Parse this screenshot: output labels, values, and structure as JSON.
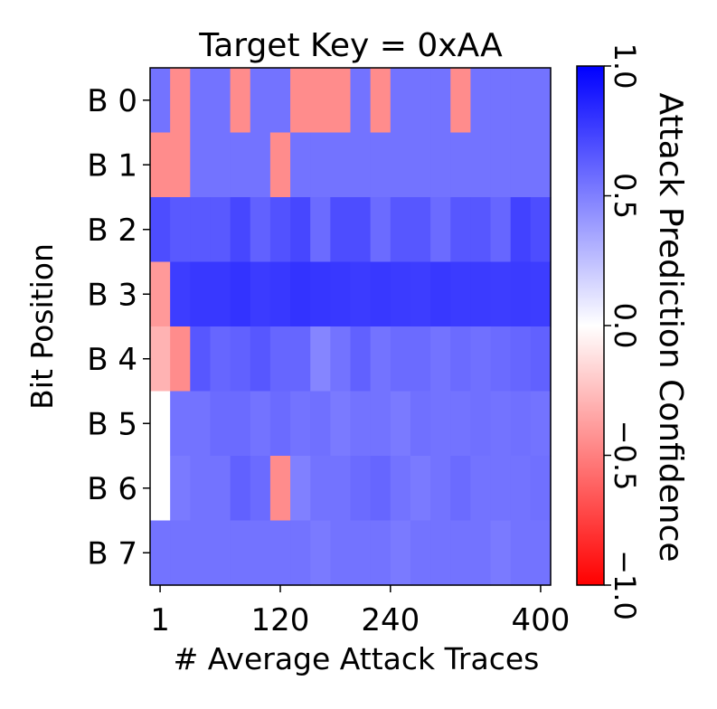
{
  "chart_data": {
    "type": "heatmap",
    "title": "Target Key = 0xAA",
    "xlabel": "# Average Attack Traces",
    "ylabel": "Bit Position",
    "colorbar_label": "Attack Prediction Confidence",
    "x_tick_labels": [
      "1",
      "120",
      "240",
      "400"
    ],
    "x_tick_columns": [
      0.5,
      6.5,
      12,
      19.5
    ],
    "y_tick_labels": [
      "B 0",
      "B 1",
      "B 2",
      "B 3",
      "B 4",
      "B 5",
      "B 6",
      "B 7"
    ],
    "colorbar_ticks": [
      1.0,
      0.5,
      0.0,
      -0.5,
      -1.0
    ],
    "colorbar_tick_labels": [
      "1.0",
      "0.5",
      "0.0",
      "−0.5",
      "−1.0"
    ],
    "colormap": "bwr",
    "colors": {
      "positive": "#0000ff",
      "zero": "#ffffff",
      "negative": "#ff0000"
    },
    "vmin": -1.0,
    "vmax": 1.0,
    "n_columns": 20,
    "rows": [
      [
        0.55,
        -0.45,
        0.55,
        0.55,
        -0.45,
        0.55,
        0.55,
        -0.45,
        -0.45,
        -0.45,
        0.55,
        -0.45,
        0.55,
        0.55,
        0.55,
        -0.45,
        0.55,
        0.55,
        0.55,
        0.55
      ],
      [
        -0.45,
        -0.45,
        0.55,
        0.55,
        0.55,
        0.55,
        -0.45,
        0.55,
        0.55,
        0.55,
        0.55,
        0.55,
        0.55,
        0.55,
        0.55,
        0.55,
        0.55,
        0.55,
        0.55,
        0.55
      ],
      [
        0.7,
        0.65,
        0.65,
        0.65,
        0.72,
        0.62,
        0.68,
        0.72,
        0.58,
        0.7,
        0.7,
        0.58,
        0.66,
        0.66,
        0.58,
        0.66,
        0.66,
        0.6,
        0.74,
        0.7
      ],
      [
        -0.4,
        0.76,
        0.78,
        0.78,
        0.8,
        0.77,
        0.78,
        0.8,
        0.79,
        0.78,
        0.77,
        0.78,
        0.77,
        0.76,
        0.78,
        0.77,
        0.77,
        0.76,
        0.77,
        0.76
      ],
      [
        -0.3,
        -0.45,
        0.66,
        0.6,
        0.62,
        0.66,
        0.6,
        0.6,
        0.48,
        0.55,
        0.62,
        0.55,
        0.58,
        0.58,
        0.55,
        0.58,
        0.56,
        0.58,
        0.6,
        0.62
      ],
      [
        0.0,
        0.55,
        0.55,
        0.58,
        0.58,
        0.55,
        0.58,
        0.55,
        0.56,
        0.52,
        0.55,
        0.55,
        0.52,
        0.56,
        0.55,
        0.55,
        0.56,
        0.55,
        0.56,
        0.55
      ],
      [
        0.0,
        0.52,
        0.55,
        0.55,
        0.62,
        0.58,
        -0.45,
        0.5,
        0.55,
        0.55,
        0.58,
        0.6,
        0.55,
        0.52,
        0.55,
        0.58,
        0.55,
        0.55,
        0.55,
        0.56
      ],
      [
        0.55,
        0.55,
        0.55,
        0.55,
        0.55,
        0.55,
        0.55,
        0.55,
        0.52,
        0.55,
        0.55,
        0.55,
        0.52,
        0.55,
        0.55,
        0.55,
        0.55,
        0.52,
        0.55,
        0.55
      ]
    ]
  }
}
